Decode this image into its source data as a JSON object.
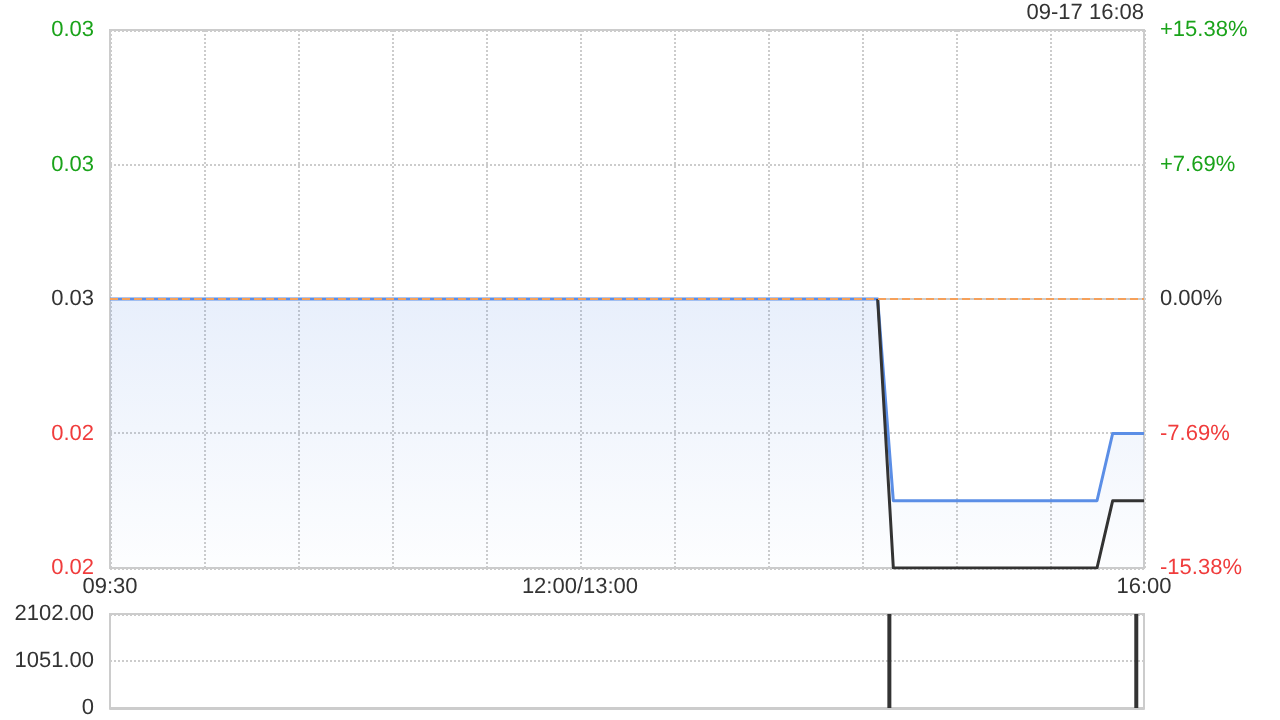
{
  "chart_data": [
    {
      "type": "line",
      "annotations": [
        "09-17 16:08"
      ],
      "categories": [
        "09:30",
        null,
        null,
        null,
        null,
        null,
        null,
        null,
        null,
        null,
        null,
        null,
        null,
        null,
        null,
        null,
        null,
        null,
        null,
        null,
        null,
        null,
        null,
        null,
        null,
        null,
        null,
        null,
        null,
        null,
        "12:00/13:00",
        null,
        null,
        null,
        null,
        null,
        null,
        null,
        null,
        null,
        null,
        null,
        null,
        null,
        null,
        null,
        null,
        null,
        null,
        null,
        null,
        null,
        null,
        null,
        null,
        null,
        null,
        null,
        null,
        null,
        null,
        null,
        null,
        null,
        null,
        null,
        "16:00"
      ],
      "series": [
        {
          "type": "area",
          "color": "#5b8ee6",
          "values": [
            0.026,
            0.026,
            0.026,
            0.026,
            0.026,
            0.026,
            0.026,
            0.026,
            0.026,
            0.026,
            0.026,
            0.026,
            0.026,
            0.026,
            0.026,
            0.026,
            0.026,
            0.026,
            0.026,
            0.026,
            0.026,
            0.026,
            0.026,
            0.026,
            0.026,
            0.026,
            0.026,
            0.026,
            0.026,
            0.026,
            0.026,
            0.026,
            0.026,
            0.026,
            0.026,
            0.026,
            0.026,
            0.026,
            0.026,
            0.026,
            0.026,
            0.026,
            0.026,
            0.026,
            0.026,
            0.026,
            0.026,
            0.026,
            0.026,
            0.026,
            0.023,
            0.023,
            0.023,
            0.023,
            0.023,
            0.023,
            0.023,
            0.023,
            0.023,
            0.023,
            0.023,
            0.023,
            0.023,
            0.023,
            0.024,
            0.024,
            0.024
          ]
        },
        {
          "type": "line",
          "color": "#333333",
          "values": [
            null,
            null,
            null,
            null,
            null,
            null,
            null,
            null,
            null,
            null,
            null,
            null,
            null,
            null,
            null,
            null,
            null,
            null,
            null,
            null,
            null,
            null,
            null,
            null,
            null,
            null,
            null,
            null,
            null,
            null,
            null,
            null,
            null,
            null,
            null,
            null,
            null,
            null,
            null,
            null,
            null,
            null,
            null,
            null,
            null,
            null,
            null,
            null,
            null,
            0.026,
            0.022,
            0.022,
            0.022,
            0.022,
            0.022,
            0.022,
            0.022,
            0.022,
            0.022,
            0.022,
            0.022,
            0.022,
            0.022,
            0.022,
            0.023,
            0.023,
            0.023
          ]
        }
      ],
      "ylim": [
        0.022,
        0.03
      ],
      "yticks": [
        {
          "value": 0.022,
          "label": "0.02"
        },
        {
          "value": 0.024,
          "label": "0.02"
        },
        {
          "value": 0.026,
          "label": "0.03"
        },
        {
          "value": 0.028,
          "label": "0.03"
        },
        {
          "value": 0.03,
          "label": "0.03"
        }
      ],
      "y2lim": [
        -15.38,
        15.38
      ],
      "y2ticks": [
        {
          "value": -15.38,
          "label": "-15.38%"
        },
        {
          "value": -7.69,
          "label": "-7.69%"
        },
        {
          "value": 0,
          "label": "0.00%"
        },
        {
          "value": 7.69,
          "label": "+7.69%"
        },
        {
          "value": 15.38,
          "label": "+15.38%"
        }
      ],
      "ref_lines": [
        {
          "axis": "y",
          "value": 0.026,
          "color": "#f5a05a",
          "line_style": "dashed"
        }
      ],
      "grid": true
    },
    {
      "type": "bar",
      "categories": [
        null,
        null,
        null,
        null,
        null,
        null,
        null,
        null,
        null,
        null,
        null,
        null,
        null,
        null,
        null,
        null,
        null,
        null,
        null,
        null,
        null,
        null,
        null,
        null,
        null,
        null,
        null,
        null,
        null,
        null,
        null,
        null,
        null,
        null,
        null,
        null,
        null,
        null,
        null,
        null,
        null,
        null,
        null,
        null,
        null,
        null,
        null,
        null,
        null,
        null,
        null,
        null,
        null,
        null,
        null,
        null,
        null,
        null,
        null,
        null,
        null,
        null,
        null,
        null,
        null,
        null,
        null
      ],
      "values": [
        null,
        null,
        null,
        null,
        null,
        null,
        null,
        null,
        null,
        null,
        null,
        null,
        null,
        null,
        null,
        null,
        null,
        null,
        null,
        null,
        null,
        null,
        null,
        null,
        null,
        null,
        null,
        null,
        null,
        null,
        null,
        null,
        null,
        null,
        null,
        null,
        null,
        null,
        null,
        null,
        null,
        null,
        null,
        null,
        null,
        null,
        null,
        null,
        null,
        null,
        2102,
        null,
        null,
        null,
        null,
        null,
        null,
        null,
        null,
        null,
        null,
        null,
        null,
        null,
        null,
        null,
        2102
      ],
      "color": "#333333",
      "ylim": [
        0,
        2102
      ],
      "yticks": [
        0,
        {
          "value": 1051,
          "label": "1051.00"
        },
        {
          "value": 2102,
          "label": "2102.00"
        }
      ],
      "tick_labels": "y",
      "grid": "y"
    }
  ]
}
